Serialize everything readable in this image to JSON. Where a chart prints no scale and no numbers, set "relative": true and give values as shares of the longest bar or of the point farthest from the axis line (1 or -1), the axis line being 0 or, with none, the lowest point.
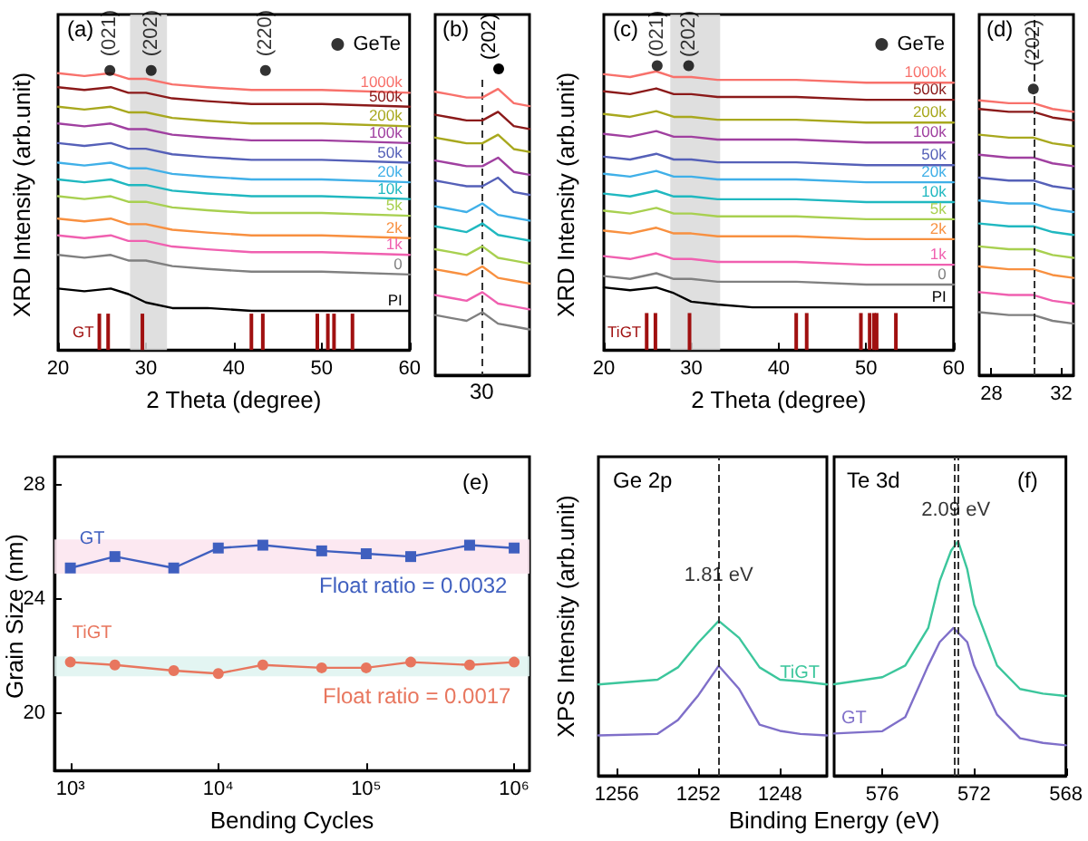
{
  "chart_data": [
    {
      "type": "line",
      "xlabel": "2 Theta (degree)",
      "ylabel": "XRD Intensity (arb.unit)",
      "relative": true,
      "legend": "top right",
      "xlim": [
        20,
        60
      ],
      "xticks": [
        20,
        30,
        40,
        50,
        60
      ],
      "x": [
        20,
        23,
        26,
        28,
        30,
        33,
        37,
        42,
        50,
        60
      ],
      "series": [
        {
          "name": "1000k",
          "color": "#f8716b",
          "values": [
            0.99,
            0.98,
            0.99,
            0.97,
            0.97,
            0.95,
            0.94,
            0.93,
            0.93,
            0.92
          ]
        },
        {
          "name": "500k",
          "color": "#8b1a1a",
          "values": [
            0.94,
            0.93,
            0.94,
            0.92,
            0.92,
            0.9,
            0.89,
            0.88,
            0.88,
            0.87
          ]
        },
        {
          "name": "200k",
          "color": "#a8a81e",
          "values": [
            0.87,
            0.86,
            0.87,
            0.85,
            0.85,
            0.83,
            0.82,
            0.81,
            0.81,
            0.8
          ]
        },
        {
          "name": "100k",
          "color": "#a040a0",
          "values": [
            0.81,
            0.8,
            0.81,
            0.79,
            0.79,
            0.77,
            0.76,
            0.75,
            0.75,
            0.74
          ]
        },
        {
          "name": "50k",
          "color": "#5560b8",
          "values": [
            0.74,
            0.73,
            0.74,
            0.72,
            0.72,
            0.7,
            0.69,
            0.68,
            0.68,
            0.67
          ]
        },
        {
          "name": "20k",
          "color": "#40b0e8",
          "values": [
            0.67,
            0.66,
            0.67,
            0.65,
            0.65,
            0.63,
            0.62,
            0.61,
            0.61,
            0.6
          ]
        },
        {
          "name": "10k",
          "color": "#20b8c0",
          "values": [
            0.61,
            0.6,
            0.61,
            0.59,
            0.59,
            0.57,
            0.56,
            0.55,
            0.55,
            0.54
          ]
        },
        {
          "name": "5k",
          "color": "#a8d050",
          "values": [
            0.55,
            0.54,
            0.55,
            0.53,
            0.53,
            0.51,
            0.5,
            0.49,
            0.49,
            0.48
          ]
        },
        {
          "name": "2k",
          "color": "#f89040",
          "values": [
            0.47,
            0.46,
            0.47,
            0.45,
            0.45,
            0.43,
            0.42,
            0.41,
            0.41,
            0.4
          ]
        },
        {
          "name": "1k",
          "color": "#f060b0",
          "values": [
            0.41,
            0.4,
            0.41,
            0.39,
            0.39,
            0.37,
            0.36,
            0.35,
            0.35,
            0.34
          ]
        },
        {
          "name": "0",
          "color": "#808080",
          "values": [
            0.34,
            0.33,
            0.34,
            0.32,
            0.32,
            0.3,
            0.29,
            0.28,
            0.28,
            0.27
          ]
        },
        {
          "name": "PI",
          "color": "#000000",
          "values": [
            0.22,
            0.21,
            0.22,
            0.2,
            0.17,
            0.15,
            0.15,
            0.14,
            0.14,
            0.14
          ]
        },
        {
          "name": "GT",
          "type": "bar",
          "color": "#a01010",
          "x": [
            24.7,
            25.7,
            29.6,
            42.0,
            43.3,
            49.5,
            50.7,
            51.4,
            53.5
          ],
          "values": [
            0.13,
            0.13,
            0.13,
            0.13,
            0.13,
            0.13,
            0.13,
            0.13,
            0.13
          ]
        },
        {
          "name": "GeTe",
          "type": "scatter",
          "marker": "circle",
          "color": "#000000",
          "x": [
            25.9,
            30.6,
            43.6
          ],
          "values": [
            1.0,
            1.0,
            1.0
          ]
        }
      ],
      "bands": [
        {
          "axis": "x",
          "from": 28.2,
          "to": 32.4,
          "color": "#d9d9d9"
        }
      ],
      "annotations": [
        "(a)",
        {
          "text": "(021)",
          "x": 25.9,
          "y": 1.05
        },
        {
          "text": "(202)",
          "x": 30.6,
          "y": 1.05
        },
        {
          "text": "(220)",
          "x": 43.6,
          "y": 1.05
        }
      ]
    },
    {
      "type": "line",
      "relative": true,
      "categories": [
        null,
        null,
        null,
        null,
        null,
        null,
        null
      ],
      "series": [
        {
          "color": "#f8716b",
          "values": [
            0.99,
            0.98,
            0.97,
            0.97,
            1.0,
            0.95,
            0.94
          ]
        },
        {
          "color": "#8b1a1a",
          "values": [
            0.91,
            0.9,
            0.89,
            0.89,
            0.92,
            0.87,
            0.86
          ]
        },
        {
          "color": "#a8a81e",
          "values": [
            0.83,
            0.82,
            0.81,
            0.81,
            0.84,
            0.79,
            0.78
          ]
        },
        {
          "color": "#a040a0",
          "values": [
            0.75,
            0.74,
            0.73,
            0.73,
            0.76,
            0.71,
            0.7
          ]
        },
        {
          "color": "#5560b8",
          "values": [
            0.68,
            0.67,
            0.66,
            0.66,
            0.69,
            0.64,
            0.63
          ]
        },
        {
          "color": "#40b0e8",
          "values": [
            0.59,
            0.58,
            0.57,
            0.6,
            0.56,
            0.55,
            0.54
          ]
        },
        {
          "color": "#20b8c0",
          "values": [
            0.52,
            0.51,
            0.5,
            0.53,
            0.49,
            0.48,
            0.47
          ]
        },
        {
          "color": "#a8d050",
          "values": [
            0.44,
            0.43,
            0.42,
            0.45,
            0.41,
            0.4,
            0.39
          ]
        },
        {
          "color": "#f89040",
          "values": [
            0.37,
            0.36,
            0.35,
            0.38,
            0.34,
            0.33,
            0.32
          ]
        },
        {
          "color": "#f060b0",
          "values": [
            0.28,
            0.27,
            0.26,
            0.29,
            0.25,
            0.24,
            0.23
          ]
        },
        {
          "color": "#808080",
          "values": [
            0.21,
            0.2,
            0.19,
            0.22,
            0.18,
            0.17,
            0.16
          ]
        }
      ],
      "annotations": [
        "(b)",
        "(202)",
        "30"
      ]
    },
    {
      "type": "line",
      "xlabel": "2 Theta (degree)",
      "ylabel": "XRD Intensity (arb.unit)",
      "relative": true,
      "legend": "top right",
      "xlim": [
        20,
        60
      ],
      "xticks": [
        20,
        30,
        40,
        50,
        60
      ],
      "x": [
        20,
        23,
        26,
        28,
        30,
        33,
        37,
        42,
        50,
        60
      ],
      "series": [
        {
          "name": "1000k",
          "color": "#f8716b",
          "values": [
            0.97,
            0.96,
            0.98,
            0.96,
            0.96,
            0.95,
            0.95,
            0.95,
            0.94,
            0.94
          ]
        },
        {
          "name": "500k",
          "color": "#8b1a1a",
          "values": [
            0.91,
            0.9,
            0.92,
            0.9,
            0.9,
            0.89,
            0.89,
            0.89,
            0.88,
            0.88
          ]
        },
        {
          "name": "200k",
          "color": "#a8a81e",
          "values": [
            0.83,
            0.82,
            0.84,
            0.82,
            0.82,
            0.81,
            0.81,
            0.81,
            0.8,
            0.8
          ]
        },
        {
          "name": "100k",
          "color": "#a040a0",
          "values": [
            0.76,
            0.75,
            0.77,
            0.75,
            0.75,
            0.74,
            0.74,
            0.74,
            0.73,
            0.73
          ]
        },
        {
          "name": "50k",
          "color": "#5560b8",
          "values": [
            0.68,
            0.67,
            0.69,
            0.67,
            0.67,
            0.66,
            0.66,
            0.66,
            0.65,
            0.65
          ]
        },
        {
          "name": "20k",
          "color": "#40b0e8",
          "values": [
            0.62,
            0.61,
            0.63,
            0.61,
            0.61,
            0.6,
            0.6,
            0.6,
            0.59,
            0.59
          ]
        },
        {
          "name": "10k",
          "color": "#20b8c0",
          "values": [
            0.55,
            0.54,
            0.56,
            0.54,
            0.54,
            0.53,
            0.53,
            0.53,
            0.52,
            0.52
          ]
        },
        {
          "name": "5k",
          "color": "#a8d050",
          "values": [
            0.49,
            0.48,
            0.5,
            0.48,
            0.48,
            0.47,
            0.47,
            0.47,
            0.46,
            0.46
          ]
        },
        {
          "name": "2k",
          "color": "#f89040",
          "values": [
            0.42,
            0.41,
            0.43,
            0.41,
            0.41,
            0.4,
            0.4,
            0.4,
            0.39,
            0.39
          ]
        },
        {
          "name": "1k",
          "color": "#f060b0",
          "values": [
            0.33,
            0.32,
            0.34,
            0.32,
            0.32,
            0.31,
            0.31,
            0.31,
            0.3,
            0.3
          ]
        },
        {
          "name": "0",
          "color": "#808080",
          "values": [
            0.26,
            0.25,
            0.27,
            0.25,
            0.25,
            0.24,
            0.24,
            0.24,
            0.23,
            0.23
          ]
        },
        {
          "name": "PI",
          "color": "#000000",
          "values": [
            0.22,
            0.21,
            0.22,
            0.2,
            0.17,
            0.16,
            0.15,
            0.15,
            0.15,
            0.15
          ]
        },
        {
          "name": "TiGT",
          "type": "bar",
          "color": "#a01010",
          "x": [
            24.9,
            25.9,
            29.8,
            42.0,
            43.2,
            49.4,
            50.4,
            50.9,
            51.2,
            53.4
          ],
          "values": [
            0.13,
            0.13,
            0.13,
            0.13,
            0.13,
            0.13,
            0.13,
            0.13,
            0.13,
            0.13
          ]
        },
        {
          "name": "GeTe",
          "type": "scatter",
          "marker": "circle",
          "color": "#000000",
          "x": [
            26.1,
            29.7
          ],
          "values": [
            1.0,
            1.0
          ]
        }
      ],
      "bands": [
        {
          "axis": "x",
          "from": 27.6,
          "to": 33.3,
          "color": "#d9d9d9"
        }
      ],
      "annotations": [
        "(c)",
        {
          "text": "(021)",
          "x": 26.1,
          "y": 1.03
        },
        {
          "text": "(202)",
          "x": 29.7,
          "y": 1.03
        }
      ]
    },
    {
      "type": "line",
      "relative": true,
      "xlim": [
        27.3,
        32.7
      ],
      "xticks": [
        28,
        32
      ],
      "x": [
        27.3,
        29,
        30.4,
        31.5,
        32.7
      ],
      "series": [
        {
          "color": "#f8716b",
          "values": [
            0.96,
            0.95,
            0.95,
            0.93,
            0.92
          ]
        },
        {
          "color": "#8b1a1a",
          "values": [
            0.93,
            0.92,
            0.92,
            0.9,
            0.89
          ]
        },
        {
          "color": "#a8a81e",
          "values": [
            0.84,
            0.83,
            0.83,
            0.81,
            0.8
          ]
        },
        {
          "color": "#a040a0",
          "values": [
            0.77,
            0.76,
            0.76,
            0.74,
            0.73
          ]
        },
        {
          "color": "#5560b8",
          "values": [
            0.69,
            0.68,
            0.68,
            0.66,
            0.65
          ]
        },
        {
          "color": "#40b0e8",
          "values": [
            0.61,
            0.6,
            0.6,
            0.58,
            0.57
          ]
        },
        {
          "color": "#20b8c0",
          "values": [
            0.53,
            0.52,
            0.52,
            0.5,
            0.49
          ]
        },
        {
          "color": "#a8d050",
          "values": [
            0.45,
            0.44,
            0.44,
            0.42,
            0.41
          ]
        },
        {
          "color": "#f89040",
          "values": [
            0.38,
            0.37,
            0.37,
            0.35,
            0.34
          ]
        },
        {
          "color": "#f060b0",
          "values": [
            0.29,
            0.28,
            0.28,
            0.26,
            0.25
          ]
        },
        {
          "color": "#808080",
          "values": [
            0.22,
            0.21,
            0.21,
            0.19,
            0.18
          ]
        },
        {
          "type": "scatter",
          "marker": "circle",
          "color": "#000000",
          "x": [
            30.4
          ],
          "values": [
            1.0
          ]
        }
      ],
      "ref_lines": [
        {
          "axis": "x",
          "value": 30.4,
          "line_style": "dashed",
          "color": "#333333"
        }
      ],
      "annotations": [
        "(d)",
        {
          "text": "(202)",
          "x": 30.4,
          "y": 1.08
        }
      ]
    },
    {
      "type": "line",
      "xlabel": "Bending Cycles",
      "ylabel": "Grain Size (nm)",
      "log": "x",
      "xlim": [
        780,
        1270000
      ],
      "xticks": [
        {
          "value": 1000,
          "label": "10³"
        },
        {
          "value": 10000,
          "label": "10⁴"
        },
        {
          "value": 100000,
          "label": "10⁵"
        },
        {
          "value": 1000000,
          "label": "10⁶"
        }
      ],
      "ylim": [
        18,
        29
      ],
      "yticks": [
        20,
        24,
        28
      ],
      "x": [
        1000,
        2000,
        5000,
        10000,
        20000,
        50000,
        100000,
        200000,
        500000,
        1000000
      ],
      "series": [
        {
          "name": "GT",
          "color": "#3f5fbf",
          "marker": "square",
          "values": [
            25.1,
            25.5,
            25.1,
            25.8,
            25.9,
            25.7,
            25.6,
            25.5,
            25.9,
            25.8
          ]
        },
        {
          "name": "TiGT",
          "color": "#e8765e",
          "marker": "circle",
          "values": [
            21.8,
            21.7,
            21.5,
            21.4,
            21.7,
            21.6,
            21.6,
            21.8,
            21.7,
            21.8
          ]
        }
      ],
      "bands": [
        {
          "axis": "y",
          "from": 24.9,
          "to": 26.1,
          "color": "#fbe4ee"
        },
        {
          "axis": "y",
          "from": 21.3,
          "to": 22.0,
          "color": "#def3f0"
        }
      ],
      "annotations": [
        "(e)",
        "Float ratio = 0.0032",
        "Float ratio = 0.0017"
      ]
    },
    {
      "type": "line",
      "xlabel": "Binding Energy (eV)",
      "ylabel": "XPS Intensity (arb.unit)",
      "relative": true,
      "xlim": [
        1256.9,
        1245.7
      ],
      "xticks": [
        1256,
        1252,
        1248
      ],
      "x": [
        1256.9,
        1254,
        1253,
        1252,
        1251,
        1250,
        1249,
        1248,
        1247,
        1245.7
      ],
      "series": [
        {
          "name": "TiGT",
          "color": "#3cc69c",
          "values": [
            0.59,
            0.62,
            0.7,
            0.86,
            1.0,
            0.89,
            0.7,
            0.62,
            0.61,
            0.59
          ]
        },
        {
          "color": "#7f6fc9",
          "values": [
            0.26,
            0.27,
            0.36,
            0.52,
            0.71,
            0.56,
            0.33,
            0.29,
            0.27,
            0.26
          ]
        }
      ],
      "ref_lines": [
        {
          "axis": "x",
          "value": 1251.0,
          "line_style": "dashed",
          "color": "#333333"
        }
      ],
      "annotations": [
        "Ge 2p",
        {
          "text": "1.81 eV",
          "x": 1251.0,
          "y": 1.23
        }
      ]
    },
    {
      "type": "line",
      "relative": true,
      "xlim": [
        578.1,
        568
      ],
      "xticks": [
        576,
        572,
        568
      ],
      "series": [
        {
          "color": "#3cc69c",
          "x": [
            578.1,
            576,
            575,
            574,
            573.5,
            573,
            572.7,
            572.3,
            572,
            571,
            570,
            569,
            568
          ],
          "values": [
            0.39,
            0.42,
            0.47,
            0.63,
            0.83,
            0.96,
            1.0,
            0.88,
            0.73,
            0.47,
            0.37,
            0.35,
            0.34
          ]
        },
        {
          "name": "GT",
          "color": "#7f6fc9",
          "x": [
            578.1,
            576,
            575,
            574,
            573.5,
            572.9,
            572.3,
            572,
            571,
            570,
            569,
            568
          ],
          "values": [
            0.18,
            0.19,
            0.25,
            0.47,
            0.57,
            0.63,
            0.57,
            0.47,
            0.26,
            0.16,
            0.14,
            0.13
          ]
        }
      ],
      "ref_lines": [
        {
          "axis": "x",
          "value": 572.9,
          "line_style": "dashed",
          "color": "#333333"
        },
        {
          "axis": "x",
          "value": 572.7,
          "line_style": "dashed",
          "color": "#333333"
        }
      ],
      "annotations": [
        "Te 3d",
        "(f)",
        {
          "text": "2.09 eV",
          "x": 572.8,
          "y": 1.09
        }
      ]
    }
  ]
}
